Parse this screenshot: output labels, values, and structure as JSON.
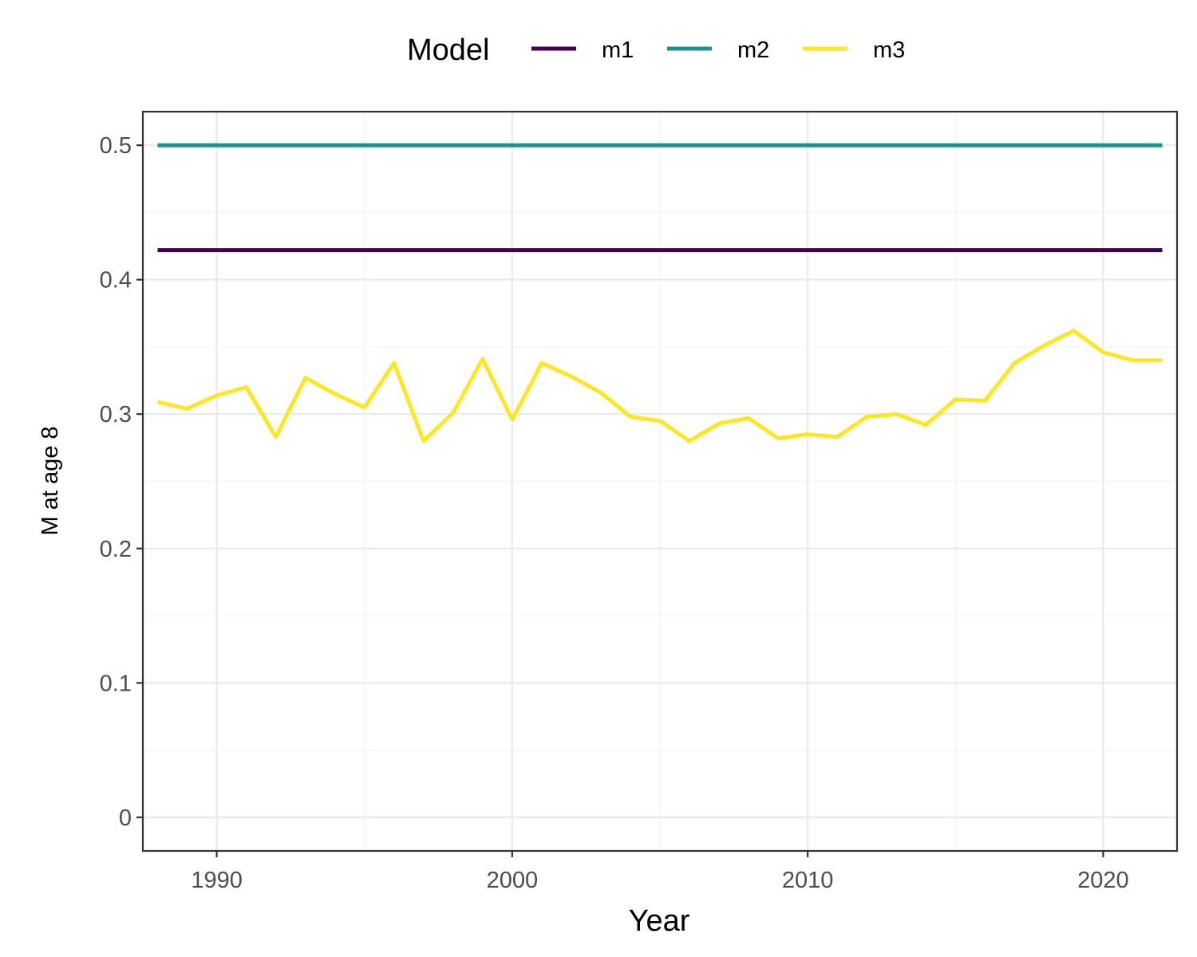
{
  "chart_data": {
    "type": "line",
    "xlabel": "Year",
    "ylabel": "M at age 8",
    "xlim": [
      1988,
      2022
    ],
    "ylim": [
      0,
      0.5
    ],
    "xticks": [
      1990,
      2000,
      2010,
      2020
    ],
    "yticks": [
      0,
      0.1,
      0.2,
      0.3,
      0.4,
      0.5
    ],
    "ytick_labels": [
      "0",
      "0.1",
      "0.2",
      "0.3",
      "0.4",
      "0.5"
    ],
    "grid": true,
    "legend": {
      "title": "Model",
      "position": "top"
    },
    "x": [
      1988,
      1989,
      1990,
      1991,
      1992,
      1993,
      1994,
      1995,
      1996,
      1997,
      1998,
      1999,
      2000,
      2001,
      2002,
      2003,
      2004,
      2005,
      2006,
      2007,
      2008,
      2009,
      2010,
      2011,
      2012,
      2013,
      2014,
      2015,
      2016,
      2017,
      2018,
      2019,
      2020,
      2021,
      2022
    ],
    "series": [
      {
        "name": "m1",
        "color": "#440154",
        "values": [
          0.422,
          0.422,
          0.422,
          0.422,
          0.422,
          0.422,
          0.422,
          0.422,
          0.422,
          0.422,
          0.422,
          0.422,
          0.422,
          0.422,
          0.422,
          0.422,
          0.422,
          0.422,
          0.422,
          0.422,
          0.422,
          0.422,
          0.422,
          0.422,
          0.422,
          0.422,
          0.422,
          0.422,
          0.422,
          0.422,
          0.422,
          0.422,
          0.422,
          0.422,
          0.422
        ]
      },
      {
        "name": "m2",
        "color": "#21908C",
        "values": [
          0.5,
          0.5,
          0.5,
          0.5,
          0.5,
          0.5,
          0.5,
          0.5,
          0.5,
          0.5,
          0.5,
          0.5,
          0.5,
          0.5,
          0.5,
          0.5,
          0.5,
          0.5,
          0.5,
          0.5,
          0.5,
          0.5,
          0.5,
          0.5,
          0.5,
          0.5,
          0.5,
          0.5,
          0.5,
          0.5,
          0.5,
          0.5,
          0.5,
          0.5,
          0.5
        ]
      },
      {
        "name": "m3",
        "color": "#FDE725",
        "values": [
          0.309,
          0.304,
          0.314,
          0.32,
          0.283,
          0.327,
          0.315,
          0.305,
          0.338,
          0.28,
          0.301,
          0.341,
          0.296,
          0.338,
          0.328,
          0.316,
          0.298,
          0.295,
          0.28,
          0.293,
          0.297,
          0.282,
          0.285,
          0.283,
          0.298,
          0.3,
          0.292,
          0.311,
          0.31,
          0.338,
          0.351,
          0.362,
          0.346,
          0.34,
          0.34
        ]
      }
    ]
  }
}
